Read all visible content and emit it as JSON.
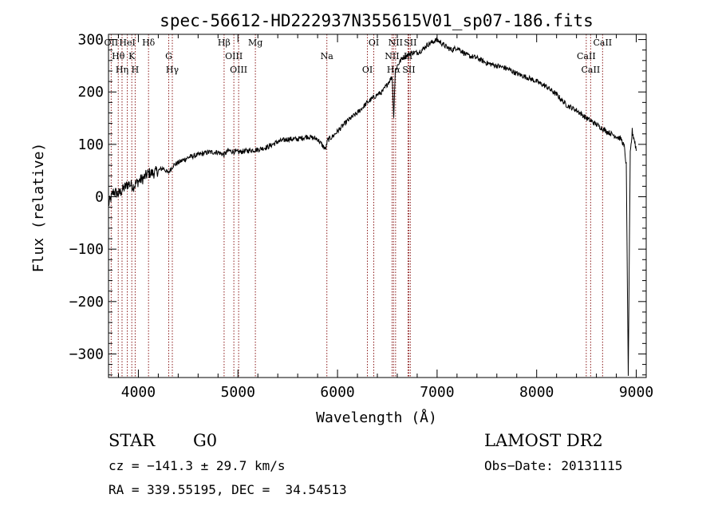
{
  "chart_data": {
    "type": "line",
    "title": "spec-56612-HD222937N355615V01_sp07-186.fits",
    "xlabel": "Wavelength (Å)",
    "ylabel": "Flux (relative)",
    "xlim": [
      3700,
      9100
    ],
    "ylim": [
      -345,
      310
    ],
    "x_ticks": [
      4000,
      5000,
      6000,
      7000,
      8000,
      9000
    ],
    "y_ticks": [
      -300,
      -200,
      -100,
      0,
      100,
      200,
      300
    ],
    "grid": false,
    "series": [
      {
        "x": [
          3700,
          3750,
          3800,
          3850,
          3900,
          3950,
          4000,
          4050,
          4100,
          4150,
          4200,
          4250,
          4300,
          4350,
          4400,
          4500,
          4600,
          4700,
          4800,
          4860,
          4900,
          5000,
          5100,
          5200,
          5300,
          5400,
          5500,
          5600,
          5700,
          5800,
          5880,
          5900,
          5950,
          6000,
          6100,
          6200,
          6300,
          6400,
          6450,
          6500,
          6550,
          6563,
          6580,
          6600,
          6650,
          6700,
          6750,
          6800,
          6850,
          6900,
          6950,
          7000,
          7050,
          7100,
          7150,
          7200,
          7300,
          7400,
          7500,
          7600,
          7700,
          7800,
          7900,
          8000,
          8100,
          8200,
          8300,
          8400,
          8500,
          8600,
          8700,
          8800,
          8850,
          8880,
          8900,
          8920,
          8940,
          8960,
          8980,
          9000
        ],
        "y": [
          -15,
          10,
          5,
          15,
          25,
          20,
          30,
          35,
          45,
          45,
          50,
          55,
          45,
          60,
          65,
          75,
          80,
          85,
          85,
          80,
          88,
          85,
          88,
          90,
          95,
          105,
          110,
          110,
          115,
          110,
          90,
          108,
          115,
          125,
          145,
          160,
          180,
          195,
          200,
          215,
          230,
          150,
          240,
          250,
          265,
          270,
          275,
          275,
          280,
          290,
          295,
          300,
          292,
          285,
          280,
          285,
          270,
          265,
          255,
          250,
          245,
          235,
          228,
          220,
          210,
          195,
          175,
          165,
          150,
          138,
          125,
          115,
          110,
          95,
          60,
          -340,
          80,
          125,
          110,
          90
        ]
      }
    ],
    "lines": [
      {
        "label": "OII",
        "x": 3727
      },
      {
        "label": "Hθ",
        "x": 3798
      },
      {
        "label": "Hη",
        "x": 3836
      },
      {
        "label": "HeI",
        "x": 3889
      },
      {
        "label": "K",
        "x": 3934
      },
      {
        "label": "H",
        "x": 3968
      },
      {
        "label": "Hδ",
        "x": 4102
      },
      {
        "label": "G",
        "x": 4305
      },
      {
        "label": "Hγ",
        "x": 4341
      },
      {
        "label": "Hβ",
        "x": 4861
      },
      {
        "label": "OIII",
        "x": 4959
      },
      {
        "label": "OIII",
        "x": 5007
      },
      {
        "label": "Mg",
        "x": 5175
      },
      {
        "label": "Na",
        "x": 5893
      },
      {
        "label": "OI",
        "x": 6300
      },
      {
        "label": "OI",
        "x": 6364
      },
      {
        "label": "NII",
        "x": 6548
      },
      {
        "label": "Hα",
        "x": 6563
      },
      {
        "label": "NII",
        "x": 6583
      },
      {
        "label": "Li",
        "x": 6708
      },
      {
        "label": "SII",
        "x": 6716
      },
      {
        "label": "SII",
        "x": 6731
      },
      {
        "label": "CaII",
        "x": 8498
      },
      {
        "label": "CaII",
        "x": 8542
      },
      {
        "label": "CaII",
        "x": 8662
      }
    ]
  },
  "info": {
    "class": "STAR",
    "subclass": "G0",
    "survey": "LAMOST DR2",
    "cz": "cz = −141.3 ± 29.7 km/s",
    "obs_date": "Obs−Date: 20131115",
    "coords": "RA = 339.55195, DEC =  34.54513"
  },
  "colors": {
    "spectrum": "#000000",
    "line_markers": "#8b1a1a"
  }
}
